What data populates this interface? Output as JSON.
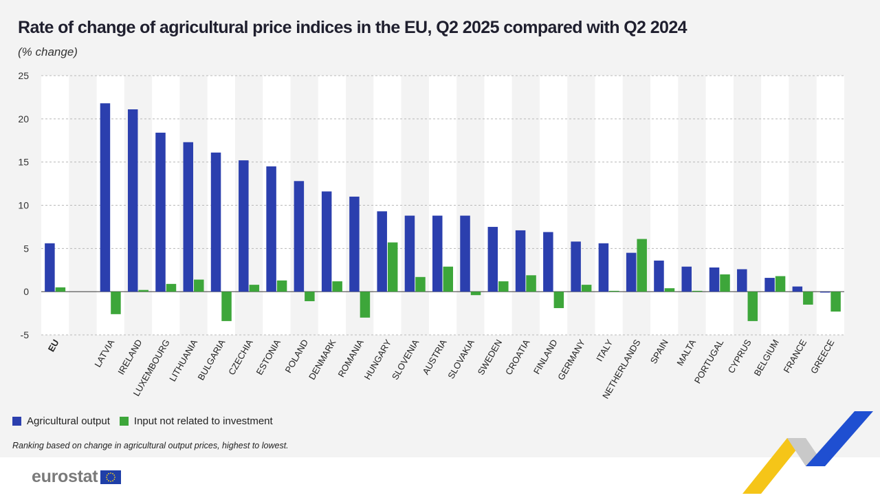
{
  "header": {
    "title": "Rate of change of agricultural price indices in the EU, Q2 2025 compared with Q2 2024",
    "subtitle": "(% change)"
  },
  "legend": {
    "series_1": "Agricultural output",
    "series_2": "Input not related to investment"
  },
  "note": "Ranking based on change in agricultural output prices, highest to lowest.",
  "footer": {
    "logo_text": "eurostat"
  },
  "colors": {
    "series_1": "#2b3fae",
    "series_2": "#3da63a",
    "background": "#f3f3f3",
    "band": "#ffffff",
    "logo_yellow": "#f5c518",
    "logo_blue": "#1f4fd1"
  },
  "chart_data": {
    "type": "bar",
    "categories": [
      "EU",
      "",
      "LATVIA",
      "IRELAND",
      "LUXEMBOURG",
      "LITHUANIA",
      "BULGARIA",
      "CZECHIA",
      "ESTONIA",
      "POLAND",
      "DENMARK",
      "ROMANIA",
      "HUNGARY",
      "SLOVENIA",
      "AUSTRIA",
      "SLOVAKIA",
      "SWEDEN",
      "CROATIA",
      "FINLAND",
      "GERMANY",
      "ITALY",
      "NETHERLANDS",
      "SPAIN",
      "MALTA",
      "PORTUGAL",
      "CYPRUS",
      "BELGIUM",
      "FRANCE",
      "GREECE"
    ],
    "bold_categories": [
      "EU"
    ],
    "series": [
      {
        "name": "Agricultural output",
        "values": [
          5.6,
          null,
          21.8,
          21.1,
          18.4,
          17.3,
          16.1,
          15.2,
          14.5,
          12.8,
          11.6,
          11.0,
          9.3,
          8.8,
          8.8,
          8.8,
          7.5,
          7.1,
          6.9,
          5.8,
          5.6,
          4.5,
          3.6,
          2.9,
          2.8,
          2.6,
          1.6,
          0.6,
          -0.1
        ]
      },
      {
        "name": "Input not related to investment",
        "values": [
          0.5,
          null,
          -2.6,
          0.2,
          0.9,
          1.4,
          -3.4,
          0.8,
          1.3,
          -1.1,
          1.2,
          -3.0,
          5.7,
          1.7,
          2.9,
          -0.4,
          1.2,
          1.9,
          -1.9,
          0.8,
          0.1,
          6.1,
          0.4,
          0.1,
          2.0,
          -3.4,
          1.8,
          -1.5,
          -2.3
        ]
      }
    ],
    "yticks": [
      25,
      20,
      15,
      10,
      5,
      0,
      -5
    ],
    "ylim": [
      -5,
      25
    ],
    "xlabel": "",
    "ylabel": "",
    "grid": true,
    "legend": "bottom-left"
  }
}
